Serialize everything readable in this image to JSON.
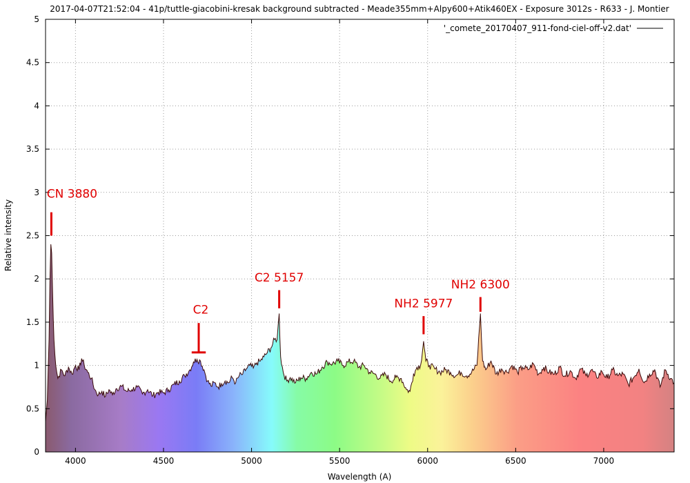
{
  "chart_data": {
    "type": "area",
    "title": "2017-04-07T21:52:04 - 41p/tuttle-giacobini-kresak background  subtracted  - Meade355mm+Alpy600+Atik460EX - Exposure 3012s - R633 - J. Montier",
    "xlabel": "Wavelength (A)",
    "ylabel": "Relative intensity",
    "xlim": [
      3830,
      7400
    ],
    "ylim": [
      0,
      5
    ],
    "x_ticks": [
      "4000",
      "4500",
      "5000",
      "5500",
      "6000",
      "6500",
      "7000"
    ],
    "y_ticks": [
      "0",
      "0.5",
      "1",
      "1.5",
      "2",
      "2.5",
      "3",
      "3.5",
      "4",
      "4.5",
      "5"
    ],
    "grid": true,
    "legend_position": "top-right",
    "fill": "visible-spectrum gradient under the curve",
    "series": [
      {
        "name": "'_comete_20170407_911-fond-ciel-off-v2.dat'",
        "color": "#3a0a0a",
        "points": [
          [
            3830,
            0.35
          ],
          [
            3840,
            0.6
          ],
          [
            3850,
            1.3
          ],
          [
            3855,
            2.0
          ],
          [
            3860,
            2.4
          ],
          [
            3865,
            2.3
          ],
          [
            3870,
            1.85
          ],
          [
            3878,
            1.3
          ],
          [
            3888,
            1.0
          ],
          [
            3900,
            0.85
          ],
          [
            3920,
            0.95
          ],
          [
            3940,
            0.88
          ],
          [
            3960,
            0.98
          ],
          [
            3980,
            0.9
          ],
          [
            4000,
            1.0
          ],
          [
            4020,
            0.95
          ],
          [
            4035,
            1.08
          ],
          [
            4050,
            1.0
          ],
          [
            4070,
            0.92
          ],
          [
            4090,
            0.85
          ],
          [
            4110,
            0.72
          ],
          [
            4130,
            0.66
          ],
          [
            4150,
            0.7
          ],
          [
            4170,
            0.64
          ],
          [
            4190,
            0.72
          ],
          [
            4210,
            0.66
          ],
          [
            4230,
            0.73
          ],
          [
            4260,
            0.76
          ],
          [
            4290,
            0.7
          ],
          [
            4320,
            0.72
          ],
          [
            4350,
            0.75
          ],
          [
            4380,
            0.67
          ],
          [
            4410,
            0.72
          ],
          [
            4440,
            0.65
          ],
          [
            4470,
            0.69
          ],
          [
            4500,
            0.68
          ],
          [
            4530,
            0.72
          ],
          [
            4560,
            0.78
          ],
          [
            4590,
            0.82
          ],
          [
            4620,
            0.88
          ],
          [
            4650,
            0.95
          ],
          [
            4670,
            1.04
          ],
          [
            4690,
            1.07
          ],
          [
            4710,
            1.05
          ],
          [
            4730,
            0.95
          ],
          [
            4750,
            0.82
          ],
          [
            4770,
            0.76
          ],
          [
            4790,
            0.8
          ],
          [
            4810,
            0.75
          ],
          [
            4830,
            0.79
          ],
          [
            4850,
            0.82
          ],
          [
            4870,
            0.8
          ],
          [
            4890,
            0.86
          ],
          [
            4910,
            0.8
          ],
          [
            4930,
            0.88
          ],
          [
            4950,
            0.9
          ],
          [
            4970,
            0.96
          ],
          [
            4990,
            1.0
          ],
          [
            5010,
            0.97
          ],
          [
            5030,
            1.03
          ],
          [
            5050,
            1.05
          ],
          [
            5070,
            1.1
          ],
          [
            5090,
            1.15
          ],
          [
            5110,
            1.2
          ],
          [
            5130,
            1.3
          ],
          [
            5145,
            1.3
          ],
          [
            5157,
            1.6
          ],
          [
            5165,
            1.1
          ],
          [
            5180,
            0.92
          ],
          [
            5200,
            0.82
          ],
          [
            5220,
            0.86
          ],
          [
            5250,
            0.8
          ],
          [
            5280,
            0.86
          ],
          [
            5310,
            0.85
          ],
          [
            5340,
            0.92
          ],
          [
            5370,
            0.9
          ],
          [
            5400,
            0.98
          ],
          [
            5430,
            1.04
          ],
          [
            5460,
            1.02
          ],
          [
            5490,
            1.05
          ],
          [
            5520,
            1.0
          ],
          [
            5550,
            1.04
          ],
          [
            5580,
            1.05
          ],
          [
            5610,
            0.98
          ],
          [
            5640,
            1.0
          ],
          [
            5670,
            0.92
          ],
          [
            5700,
            0.9
          ],
          [
            5730,
            0.85
          ],
          [
            5760,
            0.9
          ],
          [
            5790,
            0.82
          ],
          [
            5820,
            0.86
          ],
          [
            5850,
            0.85
          ],
          [
            5880,
            0.72
          ],
          [
            5900,
            0.7
          ],
          [
            5920,
            0.9
          ],
          [
            5940,
            0.98
          ],
          [
            5960,
            1.0
          ],
          [
            5977,
            1.28
          ],
          [
            5990,
            1.05
          ],
          [
            6010,
            1.0
          ],
          [
            6040,
            0.96
          ],
          [
            6070,
            0.92
          ],
          [
            6100,
            0.95
          ],
          [
            6130,
            0.92
          ],
          [
            6160,
            0.88
          ],
          [
            6190,
            0.92
          ],
          [
            6220,
            0.88
          ],
          [
            6250,
            0.92
          ],
          [
            6280,
            1.0
          ],
          [
            6300,
            1.6
          ],
          [
            6312,
            1.05
          ],
          [
            6330,
            0.95
          ],
          [
            6360,
            1.05
          ],
          [
            6390,
            0.9
          ],
          [
            6420,
            0.96
          ],
          [
            6450,
            0.92
          ],
          [
            6480,
            1.0
          ],
          [
            6510,
            0.92
          ],
          [
            6540,
            0.98
          ],
          [
            6570,
            0.95
          ],
          [
            6600,
            1.02
          ],
          [
            6630,
            0.9
          ],
          [
            6660,
            0.98
          ],
          [
            6690,
            0.92
          ],
          [
            6720,
            0.9
          ],
          [
            6750,
            0.98
          ],
          [
            6780,
            0.88
          ],
          [
            6810,
            0.94
          ],
          [
            6840,
            0.85
          ],
          [
            6870,
            0.96
          ],
          [
            6900,
            0.88
          ],
          [
            6930,
            0.95
          ],
          [
            6960,
            0.86
          ],
          [
            6990,
            0.93
          ],
          [
            7020,
            0.85
          ],
          [
            7050,
            0.95
          ],
          [
            7080,
            0.88
          ],
          [
            7110,
            0.9
          ],
          [
            7140,
            0.78
          ],
          [
            7170,
            0.86
          ],
          [
            7200,
            0.96
          ],
          [
            7230,
            0.8
          ],
          [
            7260,
            0.9
          ],
          [
            7290,
            0.95
          ],
          [
            7320,
            0.75
          ],
          [
            7350,
            0.95
          ],
          [
            7380,
            0.85
          ],
          [
            7400,
            0.8
          ]
        ]
      }
    ],
    "annotations": [
      {
        "text": "CN 3880",
        "x": 3863,
        "y_top": 2.77,
        "y_bottom": 2.5,
        "text_y": 2.94
      },
      {
        "text": "C2",
        "x": 4700,
        "y_top": 1.49,
        "y_bottom": 1.15,
        "text_y": 1.6,
        "cap": true,
        "cap_halfwidth": 40
      },
      {
        "text": "C2 5157",
        "x": 5157,
        "y_top": 1.87,
        "y_bottom": 1.66,
        "text_y": 1.97
      },
      {
        "text": "NH2 5977",
        "x": 5977,
        "y_top": 1.57,
        "y_bottom": 1.36,
        "text_y": 1.67
      },
      {
        "text": "NH2 6300",
        "x": 6300,
        "y_top": 1.79,
        "y_bottom": 1.62,
        "text_y": 1.89
      }
    ],
    "annotation_color": "#e00000"
  }
}
